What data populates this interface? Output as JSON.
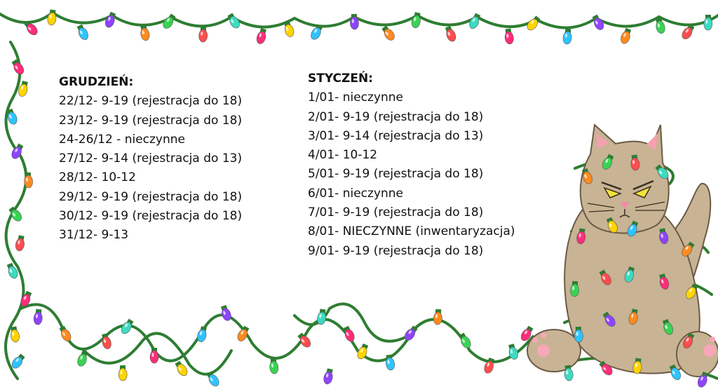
{
  "december": {
    "title": "GRUDZIEŃ:",
    "lines": [
      "22/12- 9-19 (rejestracja do 18)",
      "23/12- 9-19 (rejestracja do 18)",
      "24-26/12 - nieczynne",
      "27/12- 9-14 (rejestracja do 13)",
      "28/12- 10-12",
      "29/12- 9-19 (rejestracja do 18)",
      "30/12- 9-19 (rejestracja do 18)",
      "31/12- 9-13"
    ]
  },
  "january": {
    "title": "STYCZEŃ:",
    "lines": [
      "1/01- nieczynne",
      "2/01- 9-19 (rejestracja do 18)",
      "3/01- 9-14 (rejestracja do 13)",
      "4/01- 10-12",
      "5/01- 9-19 (rejestracja do 18)",
      "6/01- nieczynne",
      "7/01- 9-19 (rejestracja do 18)",
      "8/01- NIECZYNNE (inwentaryzacja)",
      "9/01- 9-19 (rejestracja do 18)"
    ]
  },
  "colors": {
    "wire": "#2e7d32",
    "cat_fur": "#c8b394",
    "cat_outline": "#6b5a45",
    "bulbs": [
      "#ff2d7a",
      "#ffd400",
      "#2ec4ff",
      "#8e44ff",
      "#ff8a1f",
      "#39d353",
      "#ff4d4d",
      "#3ddbc0"
    ]
  }
}
